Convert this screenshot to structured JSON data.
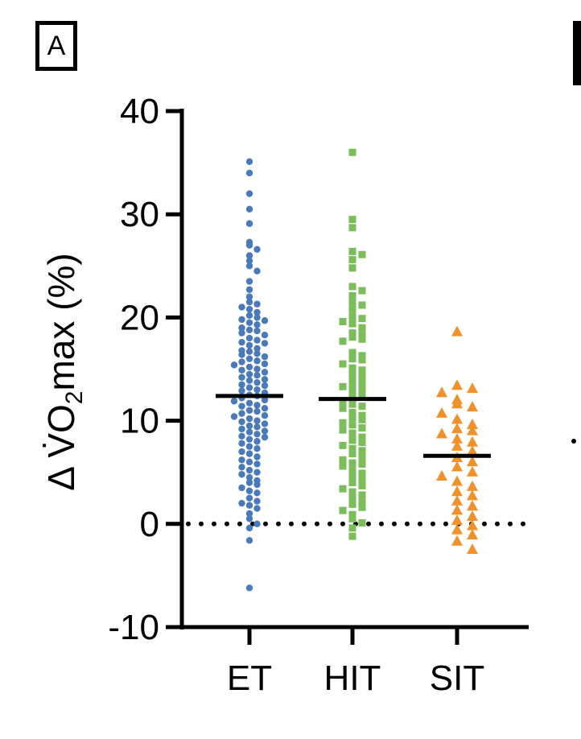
{
  "panel_label": "A",
  "chart_data": {
    "type": "scatter",
    "subtype": "dot-plot with group means",
    "ylabel": {
      "delta": "Δ",
      "v": "V̇O",
      "sub": "2",
      "rest": "max (%)"
    },
    "ylim": [
      -10,
      40
    ],
    "yticks": [
      "-10",
      "0",
      "10",
      "20",
      "30",
      "40"
    ],
    "ytick_values": [
      -10,
      0,
      10,
      20,
      30,
      40
    ],
    "categories": [
      "ET",
      "HIT",
      "SIT"
    ],
    "reference_line": {
      "y": 0,
      "style": "dotted"
    },
    "series": [
      {
        "name": "ET",
        "marker": "circle",
        "color": "#4a7ab8",
        "mean": 12.4,
        "values": [
          35.1,
          34.0,
          32.0,
          30.5,
          29.1,
          27.3,
          27.0,
          26.6,
          26.0,
          25.5,
          25.0,
          24.5,
          23.5,
          22.7,
          22.0,
          21.5,
          21.3,
          21.0,
          20.8,
          20.5,
          20.2,
          20.0,
          19.8,
          19.7,
          19.5,
          19.3,
          19.0,
          18.8,
          18.7,
          18.5,
          18.3,
          18.0,
          17.8,
          17.6,
          17.5,
          17.3,
          17.0,
          16.8,
          16.7,
          16.5,
          16.4,
          16.2,
          16.0,
          15.8,
          15.7,
          15.5,
          15.4,
          15.2,
          15.0,
          14.9,
          14.7,
          14.5,
          14.4,
          14.2,
          14.0,
          13.9,
          13.7,
          13.5,
          13.4,
          13.2,
          13.0,
          12.9,
          12.7,
          12.5,
          12.4,
          12.2,
          12.0,
          11.9,
          11.7,
          11.5,
          11.4,
          11.2,
          11.0,
          10.9,
          10.7,
          10.5,
          10.4,
          10.2,
          10.0,
          9.9,
          9.7,
          9.5,
          9.4,
          9.2,
          9.0,
          8.9,
          8.7,
          8.5,
          8.4,
          8.2,
          8.0,
          7.8,
          7.5,
          7.3,
          7.0,
          6.8,
          6.5,
          6.2,
          6.0,
          5.8,
          5.5,
          5.2,
          5.0,
          4.8,
          4.5,
          4.2,
          4.0,
          3.8,
          3.5,
          3.2,
          3.0,
          2.5,
          2.2,
          2.0,
          1.8,
          1.5,
          1.0,
          0.5,
          0.0,
          -0.4,
          -1.6,
          -6.2
        ]
      },
      {
        "name": "HIT",
        "marker": "square",
        "color": "#7bbd5a",
        "mean": 12.1,
        "values": [
          36.0,
          29.5,
          28.7,
          26.4,
          26.1,
          25.6,
          24.8,
          23.0,
          22.6,
          22.1,
          21.5,
          21.2,
          20.8,
          20.1,
          19.9,
          19.6,
          19.4,
          19.0,
          18.5,
          18.3,
          18.1,
          17.9,
          17.7,
          16.6,
          16.3,
          16.0,
          15.9,
          15.5,
          15.1,
          14.9,
          14.5,
          14.3,
          13.8,
          13.6,
          13.3,
          13.1,
          12.9,
          12.5,
          12.3,
          11.9,
          11.6,
          11.4,
          11.2,
          10.8,
          10.5,
          10.3,
          10.1,
          9.8,
          9.6,
          9.3,
          9.1,
          8.8,
          8.4,
          8.1,
          7.9,
          7.6,
          7.3,
          7.1,
          6.8,
          6.5,
          6.2,
          5.9,
          5.8,
          5.6,
          5.2,
          4.9,
          4.6,
          4.3,
          4.0,
          3.7,
          3.4,
          3.1,
          2.8,
          2.4,
          2.1,
          1.9,
          1.6,
          1.3,
          0.9,
          0.5,
          0.1,
          -0.4,
          -1.2
        ]
      },
      {
        "name": "SIT",
        "marker": "triangle",
        "color": "#f0922b",
        "mean": 6.6,
        "values": [
          18.7,
          13.5,
          13.2,
          12.8,
          12.1,
          11.7,
          11.4,
          10.8,
          10.2,
          9.7,
          9.3,
          9.1,
          8.8,
          8.3,
          8.0,
          7.6,
          7.1,
          6.5,
          6.1,
          5.6,
          5.1,
          4.7,
          4.2,
          3.7,
          3.2,
          2.8,
          2.3,
          1.8,
          1.4,
          0.8,
          0.4,
          -0.1,
          -0.5,
          -1.0,
          -1.6,
          -2.4
        ]
      }
    ]
  }
}
